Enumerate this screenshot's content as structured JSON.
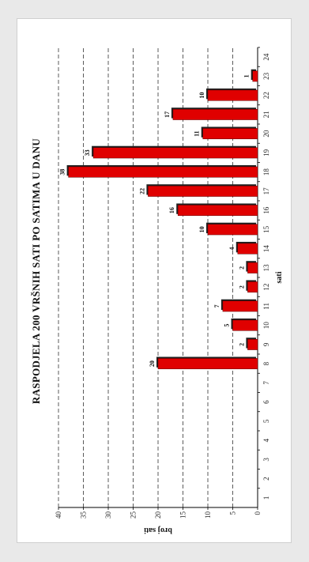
{
  "chart_data": {
    "type": "bar",
    "title": "RASPODJELA 200 VRŠNIH SATI PO SATIMA U DANU",
    "xlabel": "sati",
    "ylabel": "broj sati",
    "categories": [
      1,
      2,
      3,
      4,
      5,
      6,
      7,
      8,
      9,
      10,
      11,
      12,
      13,
      14,
      15,
      16,
      17,
      18,
      19,
      20,
      21,
      22,
      23,
      24
    ],
    "values": [
      0,
      0,
      0,
      0,
      0,
      0,
      0,
      20,
      2,
      5,
      7,
      2,
      2,
      4,
      10,
      16,
      22,
      38,
      33,
      11,
      17,
      10,
      1,
      0
    ],
    "data_labels": [
      "",
      "",
      "",
      "",
      "",
      "",
      "",
      "20",
      "2",
      "5",
      "7",
      "2",
      "2",
      "4",
      "10",
      "16",
      "22",
      "38",
      "33",
      "11",
      "17",
      "10",
      "1",
      ""
    ],
    "ylim": [
      0,
      40
    ],
    "yticks": [
      0,
      5,
      10,
      15,
      20,
      25,
      30,
      35,
      40
    ],
    "grid": true,
    "orientation": "rotated-90",
    "colors": {
      "bar": "#e00000",
      "bar_edge": "#5a0000",
      "shadow": "#202020",
      "grid": "#333333"
    }
  }
}
